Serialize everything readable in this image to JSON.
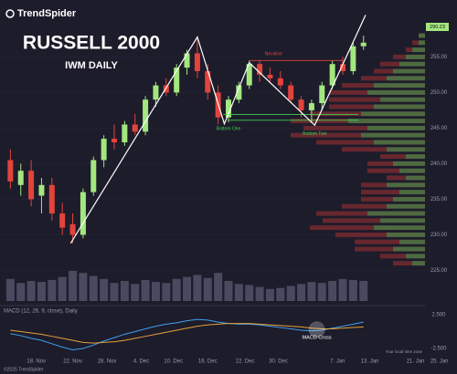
{
  "brand": "TrendSpider",
  "copyright": "©2025 TrendSpider",
  "timezone_note": "Your local time zone",
  "chart_data": {
    "type": "candlestick",
    "title": "RUSSELL 2000",
    "subtitle": "IWM DAILY",
    "last_price_label": "290.23",
    "up_color": "#a3e77f",
    "down_color": "#e2443c",
    "xlim": [
      -1,
      43
    ],
    "xticks": [
      {
        "value": 2.5,
        "label": "18. Nov"
      },
      {
        "value": 6,
        "label": "22. Nov"
      },
      {
        "value": 9.3,
        "label": "28. Nov"
      },
      {
        "value": 12.6,
        "label": "4. Dec"
      },
      {
        "value": 15.7,
        "label": "10. Dec"
      },
      {
        "value": 19,
        "label": "16. Dec"
      },
      {
        "value": 22.6,
        "label": "22. Dec"
      },
      {
        "value": 25.8,
        "label": "30. Dec"
      },
      {
        "value": 31.5,
        "label": "7. Jan"
      },
      {
        "value": 34.6,
        "label": "13. Jan"
      },
      {
        "value": 39,
        "label": "21. Jan"
      },
      {
        "value": 41.3,
        "label": "25. Jan"
      }
    ],
    "ylim": [
      223,
      263
    ],
    "yticks": [
      {
        "value": 225,
        "label": "225.00"
      },
      {
        "value": 230,
        "label": "230.00"
      },
      {
        "value": 235,
        "label": "235.00"
      },
      {
        "value": 240,
        "label": "240.00"
      },
      {
        "value": 245,
        "label": "245.00"
      },
      {
        "value": 250,
        "label": "250.00"
      },
      {
        "value": 255,
        "label": "255.00"
      }
    ],
    "open": [
      240.5,
      237,
      239,
      235.5,
      237,
      233,
      231.5,
      230,
      236,
      240.5,
      243.5,
      243,
      245.5,
      244.5,
      249,
      251,
      250,
      253.5,
      255.5,
      253,
      250,
      246.5,
      249,
      251,
      254,
      252.5,
      252,
      251,
      249,
      247.5,
      248.5,
      251,
      254,
      253,
      256.5
    ],
    "high": [
      242,
      240,
      240.5,
      238,
      238,
      234.5,
      233,
      236.5,
      241,
      244,
      245.5,
      246,
      247,
      249.5,
      251.5,
      252,
      254,
      256,
      257.6,
      254,
      251,
      249.5,
      251.5,
      254.5,
      254.5,
      253.5,
      253,
      251.5,
      249.5,
      249,
      251.5,
      254.5,
      255,
      257,
      258
    ],
    "low": [
      236.5,
      235.5,
      234,
      233,
      232,
      230,
      228.8,
      229.5,
      235.5,
      239.5,
      242,
      242.5,
      244,
      244,
      248,
      249.5,
      249.5,
      252.5,
      252,
      249,
      245.5,
      245.8,
      248.5,
      250.5,
      251.5,
      251.5,
      250.5,
      248.5,
      246.5,
      245.7,
      247.5,
      250.5,
      252.5,
      252.5,
      256
    ],
    "close": [
      237.5,
      239,
      235,
      237,
      233,
      231,
      230,
      236,
      240.5,
      243.5,
      243,
      245.5,
      244.5,
      249,
      251,
      250,
      253.5,
      255.5,
      253,
      250,
      246.5,
      249,
      251,
      254,
      252.5,
      252,
      251,
      249,
      247.5,
      248.5,
      251,
      254,
      253,
      256.5,
      257
    ],
    "volume": [
      22,
      18,
      20,
      19,
      21,
      24,
      30,
      28,
      25,
      22,
      18,
      20,
      17,
      21,
      19,
      18,
      22,
      24,
      26,
      23,
      28,
      20,
      17,
      16,
      14,
      12,
      13,
      15,
      17,
      19,
      18,
      20,
      22,
      21,
      20
    ],
    "volume_profile": {
      "prices": [
        226,
        227,
        228,
        229,
        230,
        231,
        232,
        233,
        234,
        235,
        236,
        237,
        238,
        239,
        240,
        241,
        242,
        243,
        244,
        245,
        246,
        247,
        248,
        249,
        250,
        251,
        252,
        253,
        254,
        255,
        256,
        257,
        258
      ],
      "up": [
        2,
        3,
        5,
        4,
        6,
        8,
        7,
        9,
        6,
        5,
        4,
        6,
        3,
        4,
        5,
        3,
        6,
        8,
        10,
        9,
        12,
        10,
        8,
        7,
        9,
        8,
        6,
        5,
        4,
        3,
        2,
        1,
        1
      ],
      "down": [
        3,
        4,
        6,
        7,
        8,
        10,
        9,
        8,
        7,
        5,
        6,
        4,
        3,
        5,
        4,
        4,
        7,
        9,
        11,
        10,
        9,
        8,
        7,
        8,
        6,
        5,
        4,
        3,
        3,
        2,
        1,
        1,
        0
      ]
    },
    "pattern_points": {
      "x": [
        5.8,
        18,
        20.6,
        23,
        29.3,
        34.2
      ],
      "y": [
        228.8,
        257.8,
        245.6,
        254.2,
        245.4,
        260.9
      ]
    },
    "neckline": {
      "text": "Neckline",
      "value": 254.5,
      "x": [
        23,
        32
      ],
      "label_x": 24.5,
      "label_y": 255.4
    },
    "support_lines": [
      {
        "value": 246.9,
        "x": [
          20.5,
          33.5
        ]
      },
      {
        "value": 246.1,
        "x": [
          21,
          33.5
        ]
      }
    ],
    "bottom_one": {
      "text": "Bottom One",
      "x": 21,
      "y": 244.9
    },
    "bottom_two": {
      "text": "Bottom Two",
      "x": 29.3,
      "y": 244.2
    },
    "macd": {
      "title": "MACD (12, 26, 9, close), Daily",
      "ylim": [
        -3.5,
        3.5
      ],
      "yticks": [
        {
          "value": 2.5,
          "label": "2.500"
        },
        {
          "value": -2.5,
          "label": "-2.500"
        }
      ],
      "series": [
        {
          "name": "MACD",
          "color": "#3fa0f0",
          "values": [
            -0.3,
            -0.6,
            -1.0,
            -1.3,
            -1.8,
            -2.3,
            -2.7,
            -2.5,
            -2.0,
            -1.4,
            -0.9,
            -0.4,
            0,
            0.4,
            0.8,
            1.1,
            1.3,
            1.6,
            1.8,
            1.7,
            1.4,
            1.2,
            1.1,
            1.1,
            1.0,
            0.8,
            0.6,
            0.4,
            0.2,
            0.1,
            0.2,
            0.5,
            0.8,
            1.1,
            1.4
          ]
        },
        {
          "name": "Signal",
          "color": "#e3a13a",
          "values": [
            0.2,
            0,
            -0.2,
            -0.4,
            -0.7,
            -1.0,
            -1.3,
            -1.6,
            -1.7,
            -1.6,
            -1.5,
            -1.3,
            -1.0,
            -0.7,
            -0.4,
            -0.1,
            0.2,
            0.5,
            0.8,
            1.0,
            1.1,
            1.2,
            1.2,
            1.2,
            1.1,
            1.0,
            0.9,
            0.8,
            0.7,
            0.5,
            0.4,
            0.4,
            0.5,
            0.6,
            0.7
          ]
        }
      ],
      "cross": {
        "text": "MACD Cross",
        "x": 29.5,
        "y": 0.3
      }
    }
  }
}
